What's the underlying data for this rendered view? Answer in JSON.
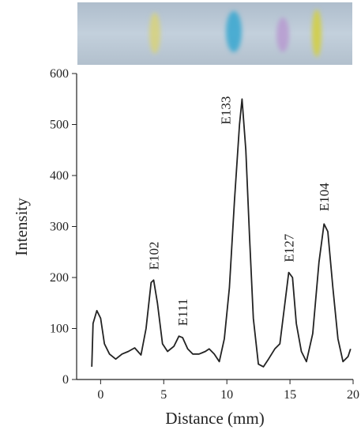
{
  "chart_data": {
    "type": "line",
    "x_label": "Distance (mm)",
    "y_label": "Intensity",
    "xlim": [
      -1.9,
      20
    ],
    "ylim": [
      0,
      600
    ],
    "xticks": [
      0,
      5,
      10,
      15,
      20
    ],
    "yticks": [
      0,
      100,
      200,
      300,
      400,
      500,
      600
    ],
    "grid": false,
    "series": [
      {
        "color": "#222222",
        "x": [
          -0.7,
          -0.6,
          -0.3,
          0,
          0.3,
          0.7,
          1.2,
          1.7,
          2.2,
          2.7,
          3.2,
          3.6,
          4.0,
          4.2,
          4.5,
          4.9,
          5.3,
          5.8,
          6.2,
          6.5,
          6.9,
          7.3,
          7.8,
          8.3,
          8.6,
          9.0,
          9.4,
          9.8,
          10.2,
          10.6,
          11.0,
          11.2,
          11.5,
          11.8,
          12.1,
          12.5,
          12.9,
          13.3,
          13.8,
          14.2,
          14.6,
          14.9,
          15.2,
          15.5,
          15.9,
          16.3,
          16.8,
          17.3,
          17.7,
          18.0,
          18.4,
          18.8,
          19.2,
          19.6,
          19.8
        ],
        "values": [
          25,
          110,
          135,
          120,
          70,
          50,
          40,
          50,
          55,
          62,
          48,
          100,
          190,
          195,
          150,
          70,
          55,
          65,
          85,
          82,
          60,
          50,
          50,
          55,
          60,
          50,
          35,
          80,
          180,
          350,
          500,
          550,
          450,
          280,
          120,
          30,
          25,
          40,
          60,
          70,
          150,
          210,
          200,
          110,
          55,
          35,
          90,
          230,
          305,
          290,
          180,
          80,
          35,
          45,
          60
        ]
      }
    ],
    "annotations": [
      {
        "text": "E102",
        "x": 4.2,
        "y": 215
      },
      {
        "text": "E111",
        "x": 6.5,
        "y": 105
      },
      {
        "text": "E133",
        "x": 9.9,
        "y": 500
      },
      {
        "text": "E127",
        "x": 14.9,
        "y": 230
      },
      {
        "text": "E104",
        "x": 17.7,
        "y": 330
      }
    ]
  }
}
